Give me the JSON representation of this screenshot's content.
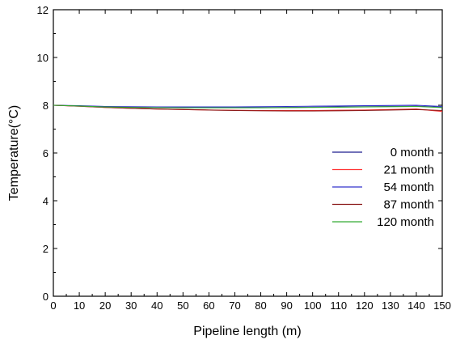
{
  "chart_data": {
    "type": "line",
    "title": "",
    "xlabel": "Pipeline length (m)",
    "ylabel": "Temperature(°C)",
    "xlim": [
      0,
      150
    ],
    "ylim": [
      0,
      12
    ],
    "x_ticks": [
      0,
      10,
      20,
      30,
      40,
      50,
      60,
      70,
      80,
      90,
      100,
      110,
      120,
      130,
      140,
      150
    ],
    "y_ticks": [
      0,
      2,
      4,
      6,
      8,
      10,
      12
    ],
    "grid": false,
    "legend_position": "right",
    "x": [
      0,
      10,
      20,
      30,
      40,
      50,
      60,
      70,
      80,
      90,
      100,
      110,
      120,
      130,
      140,
      150
    ],
    "series": [
      {
        "name": "0 month",
        "color": "#1f1f8f",
        "values": [
          8.0,
          7.97,
          7.94,
          7.92,
          7.91,
          7.9,
          7.9,
          7.9,
          7.9,
          7.91,
          7.92,
          7.93,
          7.94,
          7.95,
          7.96,
          7.92
        ]
      },
      {
        "name": "21 month",
        "color": "#ff3333",
        "values": [
          8.0,
          7.96,
          7.91,
          7.87,
          7.84,
          7.82,
          7.8,
          7.79,
          7.78,
          7.78,
          7.78,
          7.79,
          7.8,
          7.82,
          7.84,
          7.74
        ]
      },
      {
        "name": "54 month",
        "color": "#3333cc",
        "values": [
          8.0,
          7.98,
          7.95,
          7.94,
          7.93,
          7.93,
          7.93,
          7.93,
          7.94,
          7.95,
          7.96,
          7.97,
          7.98,
          7.99,
          8.0,
          7.95
        ]
      },
      {
        "name": "87 month",
        "color": "#8b1a1a",
        "values": [
          8.0,
          7.96,
          7.91,
          7.87,
          7.84,
          7.82,
          7.8,
          7.78,
          7.77,
          7.76,
          7.76,
          7.77,
          7.78,
          7.8,
          7.82,
          7.78
        ]
      },
      {
        "name": "120 month",
        "color": "#33aa33",
        "values": [
          8.0,
          7.97,
          7.93,
          7.91,
          7.9,
          7.89,
          7.89,
          7.89,
          7.89,
          7.9,
          7.91,
          7.92,
          7.93,
          7.94,
          7.95,
          7.9
        ]
      }
    ]
  }
}
